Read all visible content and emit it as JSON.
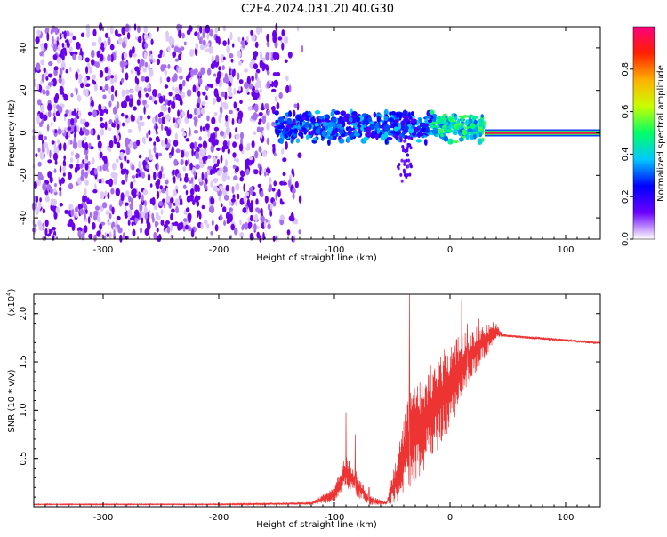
{
  "title": "C2E4.2024.031.20.40.G30",
  "chart_data": [
    {
      "type": "heatmap",
      "xlabel": "Height of straight line (km)",
      "ylabel": "Frequency (Hz)",
      "xlim": [
        -360,
        130
      ],
      "ylim": [
        -50,
        50
      ],
      "xticks": [
        -300,
        -200,
        -100,
        0,
        100
      ],
      "xtick_labels": [
        "-300",
        "-200",
        "-100",
        "0",
        "100"
      ],
      "yticks": [
        -40,
        -20,
        0,
        20,
        40
      ],
      "ytick_labels": [
        "-40",
        "-20",
        "0",
        "20",
        "40"
      ],
      "colorbar": {
        "label": "Normalized spectral amplitude",
        "range": [
          0,
          1
        ],
        "ticks": [
          0.0,
          0.2,
          0.4,
          0.6,
          0.8
        ],
        "tick_labels": [
          "0.0",
          "0.2",
          "0.4",
          "0.6",
          "0.8"
        ],
        "colormap": [
          "#ffffff",
          "#6a00ff",
          "#0000ff",
          "#00c8ff",
          "#00ff66",
          "#c8ff00",
          "#ffb000",
          "#ff2000",
          "#ff0080"
        ]
      },
      "regions": [
        {
          "x_range": [
            -360,
            -150
          ],
          "y_range": [
            -50,
            50
          ],
          "amplitude_range": [
            0.0,
            0.15
          ],
          "description_color": "#8a2be2"
        },
        {
          "x_range": [
            -150,
            30
          ],
          "y_center": 3,
          "y_halfwidth": 8,
          "amplitude_range": [
            0.15,
            0.4
          ]
        },
        {
          "x_range": [
            30,
            130
          ],
          "y_center": 0,
          "amplitude": 0.95
        }
      ]
    },
    {
      "type": "line",
      "xlabel": "Height of straight line (km)",
      "ylabel": "SNR (10 * v/v)",
      "yscale_label": "(x10",
      "yscale_exponent": "4",
      "yscale_close": ")",
      "xlim": [
        -360,
        130
      ],
      "ylim": [
        0,
        2.2
      ],
      "xticks": [
        -300,
        -200,
        -100,
        0,
        100
      ],
      "xtick_labels": [
        "-300",
        "-200",
        "-100",
        "0",
        "100"
      ],
      "yticks": [
        0.5,
        1.0,
        1.5,
        2.0
      ],
      "ytick_labels": [
        "0.5",
        "1.0",
        "1.5",
        "2.0"
      ],
      "series": [
        {
          "color": "#ee3333",
          "envelope": [
            [
              -360,
              0.02,
              0.03
            ],
            [
              -200,
              0.02,
              0.03
            ],
            [
              -120,
              0.02,
              0.05
            ],
            [
              -100,
              0.05,
              0.2
            ],
            [
              -90,
              0.2,
              0.55
            ],
            [
              -80,
              0.1,
              0.35
            ],
            [
              -70,
              0.02,
              0.12
            ],
            [
              -55,
              0.02,
              0.05
            ],
            [
              -45,
              0.05,
              0.6
            ],
            [
              -35,
              0.2,
              1.2
            ],
            [
              -25,
              0.3,
              1.4
            ],
            [
              -15,
              0.5,
              1.5
            ],
            [
              0,
              0.8,
              1.7
            ],
            [
              10,
              1.1,
              1.8
            ],
            [
              25,
              1.45,
              1.88
            ],
            [
              40,
              1.72,
              1.92
            ],
            [
              45,
              1.76,
              1.79
            ],
            [
              130,
              1.68,
              1.71
            ]
          ],
          "peaks": [
            [
              -90,
              0.98
            ],
            [
              -82,
              0.75
            ],
            [
              -70,
              0.2
            ],
            [
              -35,
              2.25
            ],
            [
              -28,
              1.25
            ],
            [
              -10,
              1.5
            ],
            [
              10,
              2.15
            ],
            [
              15,
              1.9
            ],
            [
              25,
              1.95
            ]
          ]
        }
      ]
    }
  ]
}
